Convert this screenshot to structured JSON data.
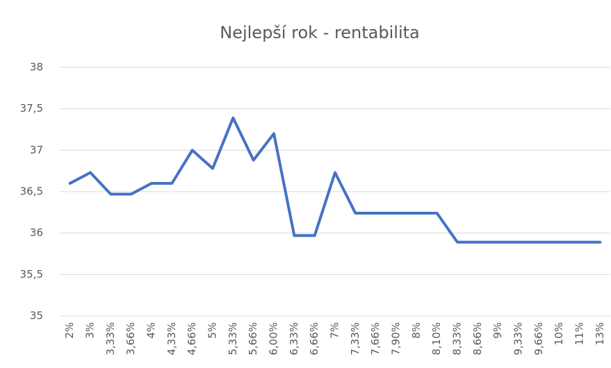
{
  "chart_data": {
    "type": "line",
    "title": "Nejlepší rok - rentabilita",
    "categories": [
      "2%",
      "3%",
      "3,33%",
      "3,66%",
      "4%",
      "4,33%",
      "4,66%",
      "5%",
      "5,33%",
      "5,66%",
      "6,00%",
      "6,33%",
      "6,66%",
      "7%",
      "7,33%",
      "7,66%",
      "7,90%",
      "8%",
      "8,10%",
      "8,33%",
      "8,66%",
      "9%",
      "9,33%",
      "9,66%",
      "10%",
      "11%",
      "13%"
    ],
    "values": [
      36.6,
      36.73,
      36.47,
      36.47,
      36.6,
      36.6,
      37.0,
      36.78,
      37.39,
      36.88,
      37.2,
      35.97,
      35.97,
      36.73,
      36.24,
      36.24,
      36.24,
      36.24,
      36.24,
      35.89,
      35.89,
      35.89,
      35.89,
      35.89,
      35.89,
      35.89,
      35.89
    ],
    "color": "#4472c4",
    "ylim": [
      35,
      38
    ],
    "yticks": [
      35,
      {
        "value": 35.5,
        "label": "35,5"
      },
      36,
      {
        "value": 36.5,
        "label": "36,5"
      },
      37,
      {
        "value": 37.5,
        "label": "37,5"
      },
      38
    ],
    "grid": true
  }
}
